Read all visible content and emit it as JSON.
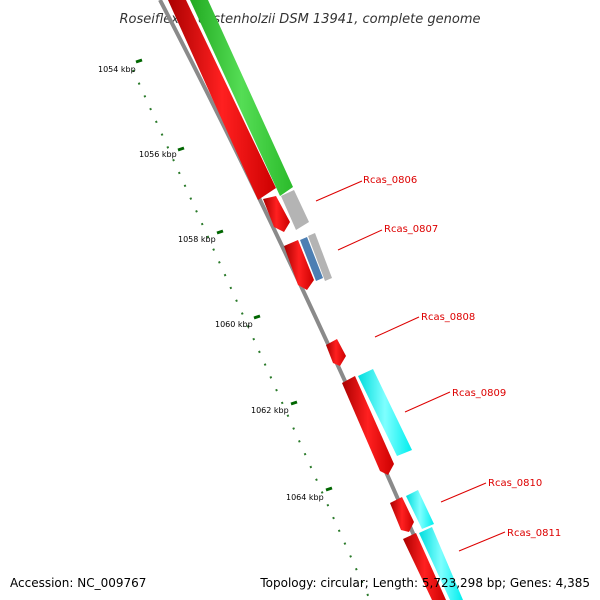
{
  "title": "Roseiflexus castenholzii DSM 13941, complete genome",
  "ticks": [
    "1054 kbp",
    "1056 kbp",
    "1058 kbp",
    "1060 kbp",
    "1062 kbp",
    "1064 kbp"
  ],
  "genes": [
    "Rcas_0806",
    "Rcas_0807",
    "Rcas_0808",
    "Rcas_0809",
    "Rcas_0810",
    "Rcas_0811"
  ],
  "footer": {
    "accession": "Accession: NC_009767",
    "summary": "Topology: circular; Length: 5,723,298 bp; Genes: 4,385"
  },
  "colors": {
    "cds": "#ff0000",
    "green_feature": "#33cc33",
    "grey_feature": "#b4b4b4",
    "cyan_feature": "#00ffff",
    "blue_feature": "#4d7fb3",
    "backbone": "#808080",
    "tick": "#006600",
    "label": "#dd0000"
  }
}
